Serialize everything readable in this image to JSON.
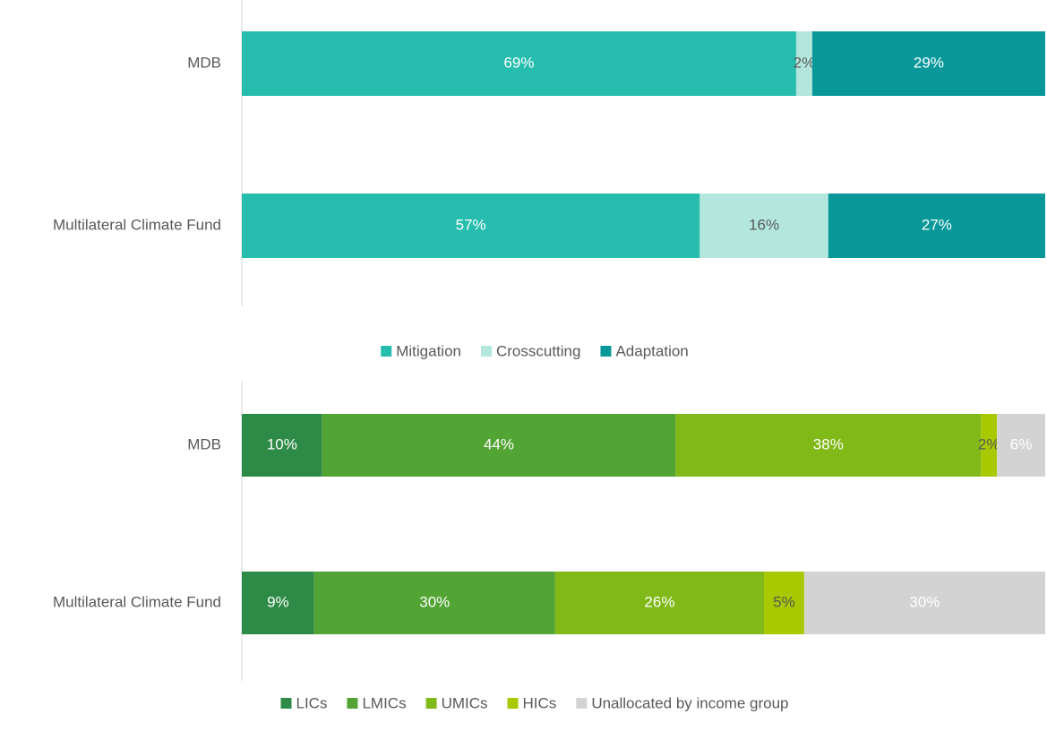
{
  "chart_data": [
    {
      "type": "stacked_barh",
      "categories": [
        "MDB",
        "Multilateral Climate Fund"
      ],
      "xlim": [
        0,
        100
      ],
      "series": [
        {
          "name": "Mitigation",
          "color": "#26bdae",
          "label_color": "#ffffff",
          "values": [
            69,
            57
          ],
          "value_labels": [
            "69%",
            "57%"
          ]
        },
        {
          "name": "Crosscutting",
          "color": "#b3e6dc",
          "label_color": "#595959",
          "values": [
            2,
            16
          ],
          "value_labels": [
            "2%",
            "16%"
          ]
        },
        {
          "name": "Adaptation",
          "color": "#08989a",
          "label_color": "#ffffff",
          "values": [
            29,
            27
          ],
          "value_labels": [
            "29%",
            "27%"
          ]
        }
      ]
    },
    {
      "type": "stacked_barh",
      "categories": [
        "MDB",
        "Multilateral Climate Fund"
      ],
      "xlim": [
        0,
        100
      ],
      "series": [
        {
          "name": "LICs",
          "color": "#2e8b47",
          "label_color": "#ffffff",
          "values": [
            10,
            9
          ],
          "value_labels": [
            "10%",
            "9%"
          ]
        },
        {
          "name": "LMICs",
          "color": "#52a535",
          "label_color": "#ffffff",
          "values": [
            44,
            30
          ],
          "value_labels": [
            "44%",
            "30%"
          ]
        },
        {
          "name": "UMICs",
          "color": "#80b918",
          "label_color": "#ffffff",
          "values": [
            38,
            26
          ],
          "value_labels": [
            "38%",
            "26%"
          ]
        },
        {
          "name": "HICs",
          "color": "#a8c800",
          "label_color": "#595959",
          "values": [
            2,
            5
          ],
          "value_labels": [
            "2%",
            "5%"
          ]
        },
        {
          "name": "Unallocated by income group",
          "color": "#d3d3d3",
          "label_color": "#ffffff",
          "values": [
            6,
            30
          ],
          "value_labels": [
            "6%",
            "30%"
          ]
        }
      ]
    }
  ]
}
